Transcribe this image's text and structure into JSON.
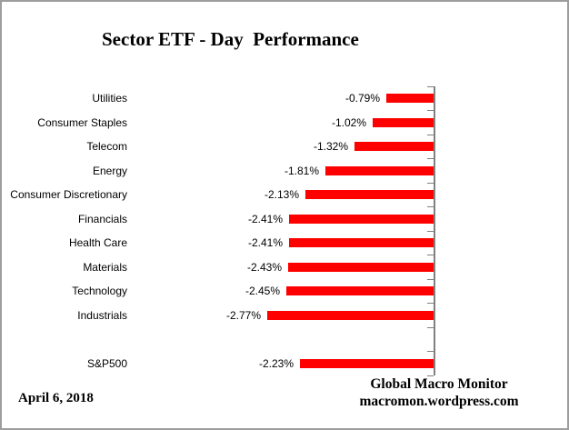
{
  "title": "Sector ETF - Day  Performance",
  "date_label": "April 6, 2018",
  "attribution": {
    "line1": "Global Macro Monitor",
    "line2": "macromon.wordpress.com"
  },
  "chart_data": {
    "type": "bar",
    "orientation": "horizontal",
    "title": "Sector ETF - Day  Performance",
    "categories": [
      "Utilities",
      "Consumer Staples",
      "Telecom",
      "Energy",
      "Consumer Discretionary",
      "Financials",
      "Health Care",
      "Materials",
      "Technology",
      "Industrials",
      "S&P500"
    ],
    "values": [
      -0.79,
      -1.02,
      -1.32,
      -1.81,
      -2.13,
      -2.41,
      -2.41,
      -2.43,
      -2.45,
      -2.77,
      -2.23
    ],
    "labels": [
      "-0.79%",
      "-1.02%",
      "-1.32%",
      "-1.81%",
      "-2.13%",
      "-2.41%",
      "-2.41%",
      "-2.43%",
      "-2.45%",
      "-2.77%",
      "-2.23%"
    ],
    "xlim": [
      -3,
      0
    ],
    "axis_side": "right",
    "gap_before_category": "S&P500",
    "bar_color": "#ff0000",
    "axis_color": "#808080",
    "grid": "off",
    "legend": "none"
  }
}
